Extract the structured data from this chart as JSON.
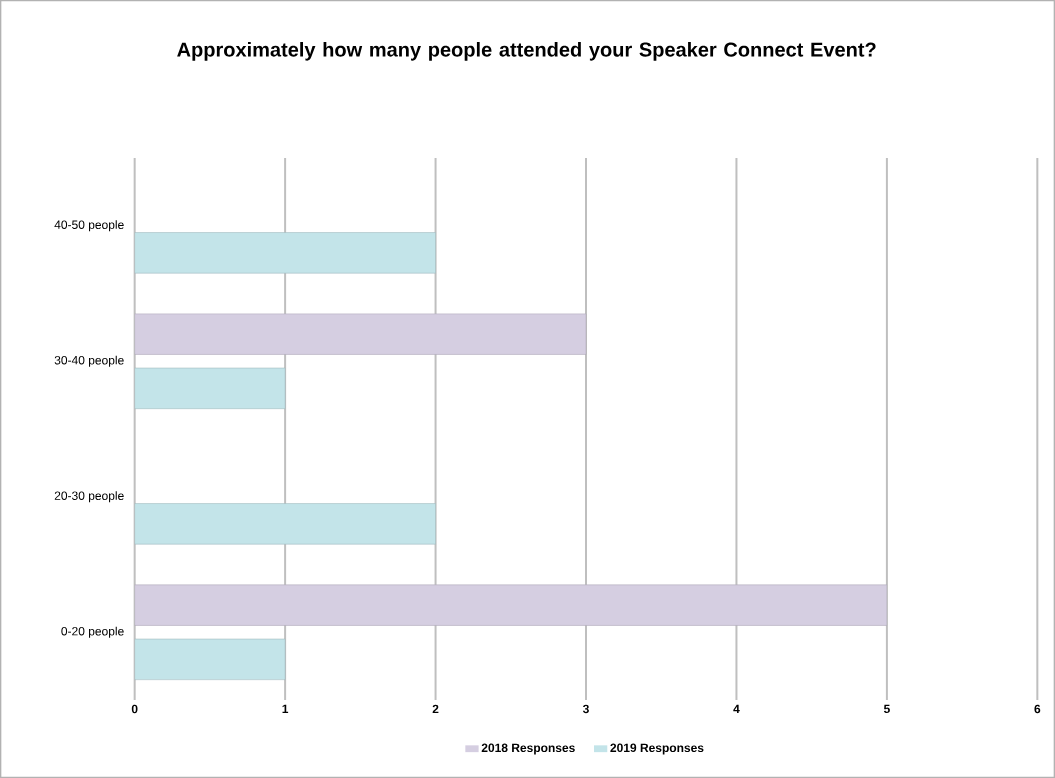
{
  "chart_data": {
    "type": "bar",
    "orientation": "horizontal",
    "title": "Approximately how many people attended your Speaker Connect Event?",
    "categories": [
      "40-50 people",
      "30-40 people",
      "20-30 people",
      "0-20 people"
    ],
    "series": [
      {
        "name": "2018 Responses",
        "color": "#d5cee1",
        "values": [
          null,
          3,
          null,
          5
        ]
      },
      {
        "name": "2019 Responses",
        "color": "#c3e4e9",
        "values": [
          2,
          1,
          2,
          1
        ]
      }
    ],
    "xlim": [
      0,
      6
    ],
    "xticks": [
      0,
      1,
      2,
      3,
      4,
      5,
      6
    ],
    "grid": "x",
    "legend": "bottom"
  }
}
